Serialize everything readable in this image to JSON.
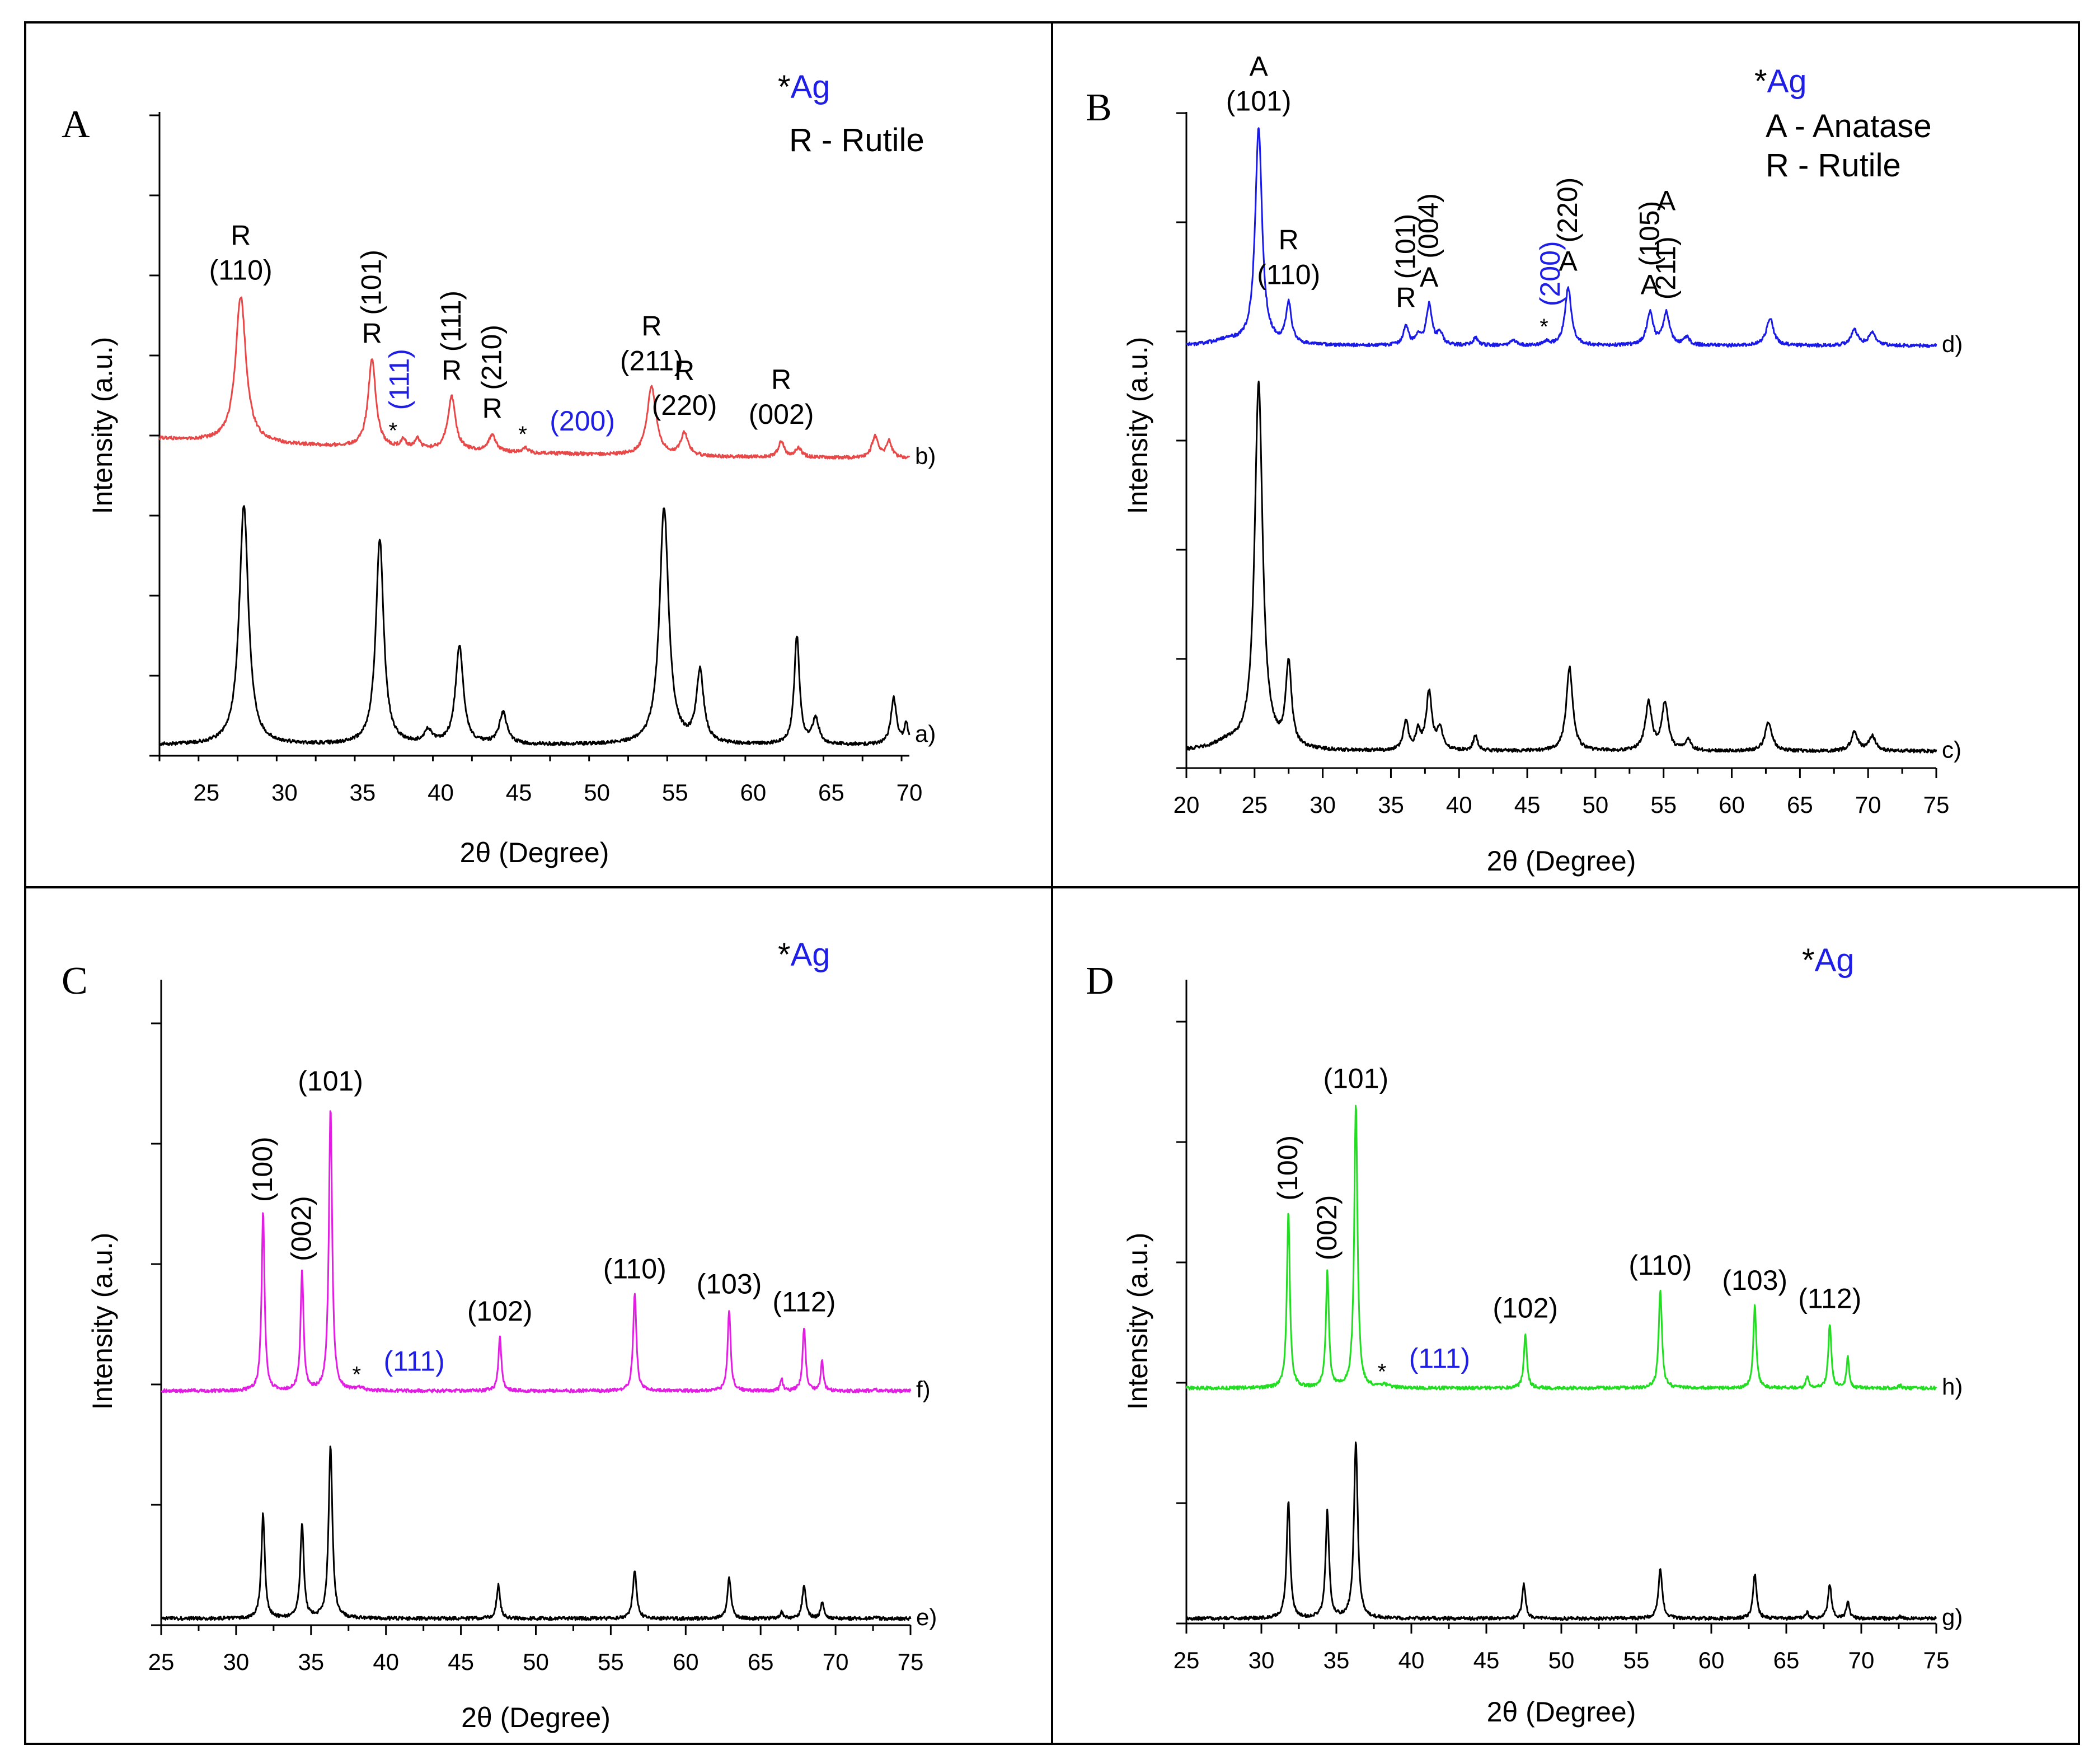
{
  "colors": {
    "frame": "#000000",
    "pristine_pattern": "#000000",
    "ag_label": "#1e1ee6",
    "panel_A_trace": "#e84848",
    "panel_B_trace": "#1a1ae8",
    "panel_C_trace": "#e21ee2",
    "panel_D_trace": "#22dd22"
  },
  "chart_data": [
    {
      "type": "line",
      "panel": "A",
      "xlabel": "2θ (Degree)",
      "ylabel": "Intensity (a.u.)",
      "xlim": [
        22,
        70
      ],
      "xticks": [
        25,
        30,
        35,
        40,
        45,
        50,
        55,
        60,
        65,
        70
      ],
      "legend": {
        "ag": "*Ag",
        "phases": [
          "R - Rutile"
        ]
      },
      "series": [
        {
          "name": "a)",
          "color": "pristine",
          "baseline": 0.02,
          "peaks": [
            {
              "x": 27.4,
              "h": 0.93,
              "w": 0.35
            },
            {
              "x": 36.1,
              "h": 0.8,
              "w": 0.3
            },
            {
              "x": 39.2,
              "h": 0.05,
              "w": 0.3
            },
            {
              "x": 41.2,
              "h": 0.38,
              "w": 0.3
            },
            {
              "x": 44.0,
              "h": 0.12,
              "w": 0.3
            },
            {
              "x": 54.3,
              "h": 0.92,
              "w": 0.35
            },
            {
              "x": 56.6,
              "h": 0.28,
              "w": 0.28
            },
            {
              "x": 62.8,
              "h": 0.42,
              "w": 0.2
            },
            {
              "x": 64.0,
              "h": 0.1,
              "w": 0.25
            },
            {
              "x": 69.0,
              "h": 0.18,
              "w": 0.22
            },
            {
              "x": 69.8,
              "h": 0.08,
              "w": 0.15
            }
          ]
        },
        {
          "name": "b)",
          "color": "doped",
          "baseline": 0.04,
          "slope": 0.12,
          "peaks": [
            {
              "x": 27.2,
              "h": 0.9,
              "w": 0.4
            },
            {
              "x": 35.6,
              "h": 0.54,
              "w": 0.3
            },
            {
              "x": 37.6,
              "h": 0.05,
              "w": 0.2
            },
            {
              "x": 38.5,
              "h": 0.06,
              "w": 0.22
            },
            {
              "x": 40.7,
              "h": 0.33,
              "w": 0.3
            },
            {
              "x": 43.3,
              "h": 0.1,
              "w": 0.28
            },
            {
              "x": 45.4,
              "h": 0.03,
              "w": 0.2
            },
            {
              "x": 53.5,
              "h": 0.42,
              "w": 0.35
            },
            {
              "x": 55.6,
              "h": 0.14,
              "w": 0.28
            },
            {
              "x": 61.8,
              "h": 0.1,
              "w": 0.22
            },
            {
              "x": 62.9,
              "h": 0.06,
              "w": 0.25
            },
            {
              "x": 67.8,
              "h": 0.13,
              "w": 0.25
            },
            {
              "x": 68.7,
              "h": 0.1,
              "w": 0.22
            }
          ]
        }
      ],
      "annotations": [
        {
          "lines": [
            "R",
            "(110)"
          ],
          "x": 27.2,
          "series": "b)"
        },
        {
          "lines": [
            "R",
            "(101)"
          ],
          "x": 35.6,
          "series": "b)",
          "rotated": true
        },
        {
          "lines": [
            "R",
            "(111)"
          ],
          "x": 40.7,
          "series": "b)",
          "rotated": true
        },
        {
          "lines": [
            "R",
            "(210)"
          ],
          "x": 43.3,
          "series": "b)",
          "rotated": true
        },
        {
          "lines": [
            "R",
            "(211)"
          ],
          "x": 53.5,
          "series": "b)"
        },
        {
          "lines": [
            "R",
            "(220)"
          ],
          "x": 55.6,
          "series": "b)"
        },
        {
          "lines": [
            "R",
            "(002)"
          ],
          "x": 61.8,
          "series": "b)"
        },
        {
          "lines": [
            "(111)"
          ],
          "x": 37.1,
          "series": "b)",
          "ag": true,
          "rotated": true
        },
        {
          "lines": [
            "(200)"
          ],
          "x": 45.4,
          "series": "b)",
          "ag": true
        }
      ]
    },
    {
      "type": "line",
      "panel": "B",
      "xlabel": "2θ (Degree)",
      "ylabel": "Intensity (a.u.)",
      "xlim": [
        20,
        75
      ],
      "xticks": [
        20,
        25,
        30,
        35,
        40,
        45,
        50,
        55,
        60,
        65,
        70,
        75
      ],
      "legend": {
        "ag": "*Ag",
        "phases": [
          "A - Anatase",
          "R - Rutile"
        ]
      },
      "series": [
        {
          "name": "c)",
          "color": "pristine",
          "baseline": 0.02,
          "peaks": [
            {
              "x": 23.0,
              "h": 0.02,
              "w": 1.2
            },
            {
              "x": 25.3,
              "h": 1.0,
              "w": 0.35
            },
            {
              "x": 27.5,
              "h": 0.23,
              "w": 0.25
            },
            {
              "x": 36.1,
              "h": 0.08,
              "w": 0.22
            },
            {
              "x": 37.0,
              "h": 0.05,
              "w": 0.2
            },
            {
              "x": 37.8,
              "h": 0.16,
              "w": 0.25
            },
            {
              "x": 38.6,
              "h": 0.06,
              "w": 0.22
            },
            {
              "x": 41.2,
              "h": 0.04,
              "w": 0.2
            },
            {
              "x": 48.1,
              "h": 0.23,
              "w": 0.28
            },
            {
              "x": 53.9,
              "h": 0.13,
              "w": 0.28
            },
            {
              "x": 55.1,
              "h": 0.13,
              "w": 0.28
            },
            {
              "x": 56.8,
              "h": 0.03,
              "w": 0.25
            },
            {
              "x": 62.7,
              "h": 0.08,
              "w": 0.3
            },
            {
              "x": 69.0,
              "h": 0.05,
              "w": 0.3
            },
            {
              "x": 70.3,
              "h": 0.04,
              "w": 0.3
            }
          ]
        },
        {
          "name": "d)",
          "color": "doped",
          "baseline": 0.05,
          "peaks": [
            {
              "x": 23.0,
              "h": 0.02,
              "w": 1.2
            },
            {
              "x": 25.3,
              "h": 0.86,
              "w": 0.3
            },
            {
              "x": 27.5,
              "h": 0.16,
              "w": 0.25
            },
            {
              "x": 36.1,
              "h": 0.08,
              "w": 0.22
            },
            {
              "x": 37.0,
              "h": 0.04,
              "w": 0.2
            },
            {
              "x": 37.8,
              "h": 0.16,
              "w": 0.25
            },
            {
              "x": 38.6,
              "h": 0.05,
              "w": 0.22
            },
            {
              "x": 41.2,
              "h": 0.03,
              "w": 0.2
            },
            {
              "x": 44.0,
              "h": 0.02,
              "w": 0.25
            },
            {
              "x": 46.4,
              "h": 0.015,
              "w": 0.2
            },
            {
              "x": 48.0,
              "h": 0.23,
              "w": 0.28
            },
            {
              "x": 54.0,
              "h": 0.13,
              "w": 0.28
            },
            {
              "x": 55.2,
              "h": 0.13,
              "w": 0.28
            },
            {
              "x": 56.7,
              "h": 0.03,
              "w": 0.25
            },
            {
              "x": 62.8,
              "h": 0.11,
              "w": 0.3
            },
            {
              "x": 69.0,
              "h": 0.06,
              "w": 0.3
            },
            {
              "x": 70.3,
              "h": 0.05,
              "w": 0.3
            }
          ]
        }
      ],
      "annotations": [
        {
          "lines": [
            "A",
            "(101)"
          ],
          "x": 25.3,
          "series": "d)"
        },
        {
          "lines": [
            "R",
            "(110)"
          ],
          "x": 27.5,
          "series": "d)"
        },
        {
          "lines": [
            "R",
            "(101)"
          ],
          "x": 36.1,
          "series": "d)",
          "rotated": true
        },
        {
          "lines": [
            "A",
            "(004)"
          ],
          "x": 37.8,
          "series": "d)",
          "rotated": true
        },
        {
          "lines": [
            "(200)"
          ],
          "x": 46.4,
          "series": "d)",
          "ag": true,
          "rotated": true
        },
        {
          "lines": [
            "A",
            "(220)"
          ],
          "x": 48.0,
          "series": "d)",
          "rotated": true
        },
        {
          "lines": [
            "A",
            "(105)"
          ],
          "x": 54.0,
          "series": "d)",
          "rotated": true
        },
        {
          "lines": [
            "(211)",
            "A"
          ],
          "x": 55.2,
          "series": "d)",
          "rotated": true
        }
      ]
    },
    {
      "type": "line",
      "panel": "C",
      "xlabel": "2θ (Degree)",
      "ylabel": "Intensity (a.u.)",
      "xlim": [
        25,
        75
      ],
      "xticks": [
        25,
        30,
        35,
        40,
        45,
        50,
        55,
        60,
        65,
        70,
        75
      ],
      "legend": {
        "ag": "*Ag",
        "phases": []
      },
      "series": [
        {
          "name": "e)",
          "color": "pristine",
          "baseline": 0.01,
          "peaks": [
            {
              "x": 31.8,
              "h": 0.5,
              "w": 0.14
            },
            {
              "x": 34.4,
              "h": 0.45,
              "w": 0.14
            },
            {
              "x": 36.3,
              "h": 0.82,
              "w": 0.15
            },
            {
              "x": 47.5,
              "h": 0.16,
              "w": 0.14
            },
            {
              "x": 56.6,
              "h": 0.23,
              "w": 0.15
            },
            {
              "x": 62.9,
              "h": 0.2,
              "w": 0.14
            },
            {
              "x": 66.4,
              "h": 0.03,
              "w": 0.12
            },
            {
              "x": 67.9,
              "h": 0.16,
              "w": 0.14
            },
            {
              "x": 69.1,
              "h": 0.08,
              "w": 0.12
            },
            {
              "x": 72.6,
              "h": 0.01,
              "w": 0.12
            }
          ]
        },
        {
          "name": "f)",
          "color": "doped",
          "baseline": 0.01,
          "peaks": [
            {
              "x": 31.8,
              "h": 0.59,
              "w": 0.12
            },
            {
              "x": 34.4,
              "h": 0.39,
              "w": 0.12
            },
            {
              "x": 36.3,
              "h": 0.94,
              "w": 0.13
            },
            {
              "x": 38.2,
              "h": 0.01,
              "w": 0.3
            },
            {
              "x": 47.6,
              "h": 0.18,
              "w": 0.12
            },
            {
              "x": 56.6,
              "h": 0.32,
              "w": 0.13
            },
            {
              "x": 62.9,
              "h": 0.27,
              "w": 0.12
            },
            {
              "x": 66.4,
              "h": 0.04,
              "w": 0.1
            },
            {
              "x": 67.9,
              "h": 0.21,
              "w": 0.12
            },
            {
              "x": 69.1,
              "h": 0.1,
              "w": 0.1
            },
            {
              "x": 72.6,
              "h": 0.01,
              "w": 0.1
            }
          ]
        }
      ],
      "annotations": [
        {
          "lines": [
            "(100)"
          ],
          "x": 31.8,
          "series": "f)",
          "rotated": true
        },
        {
          "lines": [
            "(002)"
          ],
          "x": 34.4,
          "series": "f)",
          "rotated": true
        },
        {
          "lines": [
            "(101)"
          ],
          "x": 36.3,
          "series": "f)"
        },
        {
          "lines": [
            "(102)"
          ],
          "x": 47.6,
          "series": "f)"
        },
        {
          "lines": [
            "(110)"
          ],
          "x": 56.6,
          "series": "f)"
        },
        {
          "lines": [
            "(103)"
          ],
          "x": 62.9,
          "series": "f)"
        },
        {
          "lines": [
            "(112)"
          ],
          "x": 67.9,
          "series": "f)"
        },
        {
          "lines": [
            "(111)"
          ],
          "x": 38.2,
          "series": "f)",
          "ag": true
        }
      ]
    },
    {
      "type": "line",
      "panel": "D",
      "xlabel": "2θ (Degree)",
      "ylabel": "Intensity (a.u.)",
      "xlim": [
        25,
        75
      ],
      "xticks": [
        25,
        30,
        35,
        40,
        45,
        50,
        55,
        60,
        65,
        70,
        75
      ],
      "legend": {
        "ag": "*Ag",
        "phases": []
      },
      "series": [
        {
          "name": "g)",
          "color": "pristine",
          "baseline": 0.01,
          "peaks": [
            {
              "x": 31.8,
              "h": 0.55,
              "w": 0.14
            },
            {
              "x": 34.4,
              "h": 0.5,
              "w": 0.14
            },
            {
              "x": 36.3,
              "h": 0.83,
              "w": 0.15
            },
            {
              "x": 47.5,
              "h": 0.16,
              "w": 0.14
            },
            {
              "x": 56.6,
              "h": 0.24,
              "w": 0.15
            },
            {
              "x": 62.9,
              "h": 0.21,
              "w": 0.14
            },
            {
              "x": 66.4,
              "h": 0.03,
              "w": 0.12
            },
            {
              "x": 67.9,
              "h": 0.16,
              "w": 0.14
            },
            {
              "x": 69.1,
              "h": 0.08,
              "w": 0.12
            },
            {
              "x": 72.6,
              "h": 0.01,
              "w": 0.12
            }
          ]
        },
        {
          "name": "h)",
          "color": "doped",
          "baseline": 0.01,
          "peaks": [
            {
              "x": 31.8,
              "h": 0.58,
              "w": 0.12
            },
            {
              "x": 34.4,
              "h": 0.38,
              "w": 0.12
            },
            {
              "x": 36.3,
              "h": 0.93,
              "w": 0.13
            },
            {
              "x": 38.2,
              "h": 0.01,
              "w": 0.3
            },
            {
              "x": 47.6,
              "h": 0.18,
              "w": 0.12
            },
            {
              "x": 56.6,
              "h": 0.32,
              "w": 0.13
            },
            {
              "x": 62.9,
              "h": 0.27,
              "w": 0.12
            },
            {
              "x": 66.4,
              "h": 0.04,
              "w": 0.1
            },
            {
              "x": 67.9,
              "h": 0.21,
              "w": 0.12
            },
            {
              "x": 69.1,
              "h": 0.1,
              "w": 0.1
            },
            {
              "x": 72.6,
              "h": 0.01,
              "w": 0.1
            }
          ]
        }
      ],
      "annotations": [
        {
          "lines": [
            "(100)"
          ],
          "x": 31.8,
          "series": "h)",
          "rotated": true
        },
        {
          "lines": [
            "(002)"
          ],
          "x": 34.4,
          "series": "h)",
          "rotated": true
        },
        {
          "lines": [
            "(101)"
          ],
          "x": 36.3,
          "series": "h)"
        },
        {
          "lines": [
            "(102)"
          ],
          "x": 47.6,
          "series": "h)"
        },
        {
          "lines": [
            "(110)"
          ],
          "x": 56.6,
          "series": "h)"
        },
        {
          "lines": [
            "(103)"
          ],
          "x": 62.9,
          "series": "h)"
        },
        {
          "lines": [
            "(112)"
          ],
          "x": 67.9,
          "series": "h)"
        },
        {
          "lines": [
            "(111)"
          ],
          "x": 38.2,
          "series": "h)",
          "ag": true
        }
      ]
    }
  ]
}
